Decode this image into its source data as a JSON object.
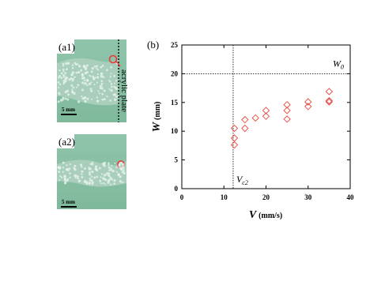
{
  "photos": [
    {
      "label": "(a1)",
      "scale_bar": "5 mm",
      "side_label": "acrylic plate"
    },
    {
      "label": "(a2)",
      "scale_bar": "5 mm"
    }
  ],
  "chart_data": {
    "type": "scatter",
    "panel_label": "(b)",
    "x_label": {
      "symbol": "V",
      "unit": "(mm/s)"
    },
    "y_label": {
      "symbol": "W",
      "unit": "(mm)"
    },
    "xlim": [
      0,
      40
    ],
    "ylim": [
      0,
      25
    ],
    "xticks": [
      0,
      10,
      20,
      30,
      40
    ],
    "yticks": [
      0,
      5,
      10,
      15,
      20,
      25
    ],
    "series": [
      {
        "color": "#e8463c",
        "marker": "diamond",
        "x": [
          12.5,
          12.5,
          12.5,
          15,
          15,
          17.5,
          20,
          20,
          25,
          25,
          25,
          30,
          30,
          35,
          35,
          35
        ],
        "values": [
          10.5,
          8.8,
          7.6,
          12,
          10.5,
          12.3,
          13.6,
          12.6,
          14.6,
          13.6,
          12.1,
          15.1,
          14.3,
          16.9,
          15.3,
          15.1
        ]
      }
    ],
    "reference_lines": [
      {
        "axis": "y",
        "value": 20,
        "label": "W",
        "label_sub": "0"
      },
      {
        "axis": "x",
        "value": 12.2,
        "label": "V",
        "label_sub": "c2"
      }
    ]
  }
}
